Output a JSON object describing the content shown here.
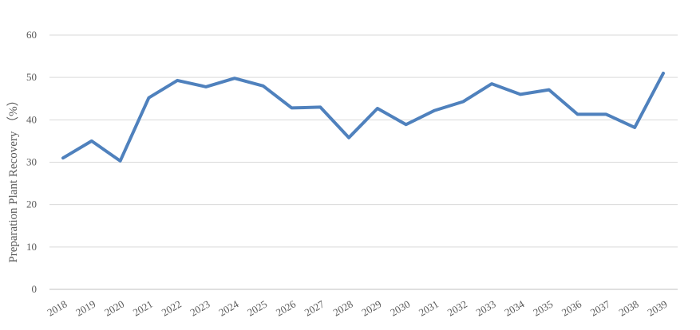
{
  "chart_data": {
    "type": "line",
    "title": "",
    "xlabel": "",
    "ylabel": "Preparation Plant Recovery （%）",
    "ylim": [
      0,
      60
    ],
    "yticks": [
      0,
      10,
      20,
      30,
      40,
      50,
      60
    ],
    "grid": true,
    "legend": "none",
    "categories": [
      "2018",
      "2019",
      "2020",
      "2021",
      "2022",
      "2023",
      "2024",
      "2025",
      "2026",
      "2027",
      "2028",
      "2029",
      "2030",
      "2031",
      "2032",
      "2033",
      "2034",
      "2035",
      "2036",
      "2037",
      "2038",
      "2039"
    ],
    "series": [
      {
        "color": "#4f81bd",
        "values": [
          31.0,
          35.0,
          30.3,
          45.2,
          49.3,
          47.8,
          49.8,
          48.0,
          42.8,
          43.0,
          35.8,
          42.7,
          38.9,
          42.2,
          44.3,
          48.5,
          46.0,
          47.1,
          41.3,
          41.3,
          38.2,
          51.0
        ]
      }
    ]
  }
}
